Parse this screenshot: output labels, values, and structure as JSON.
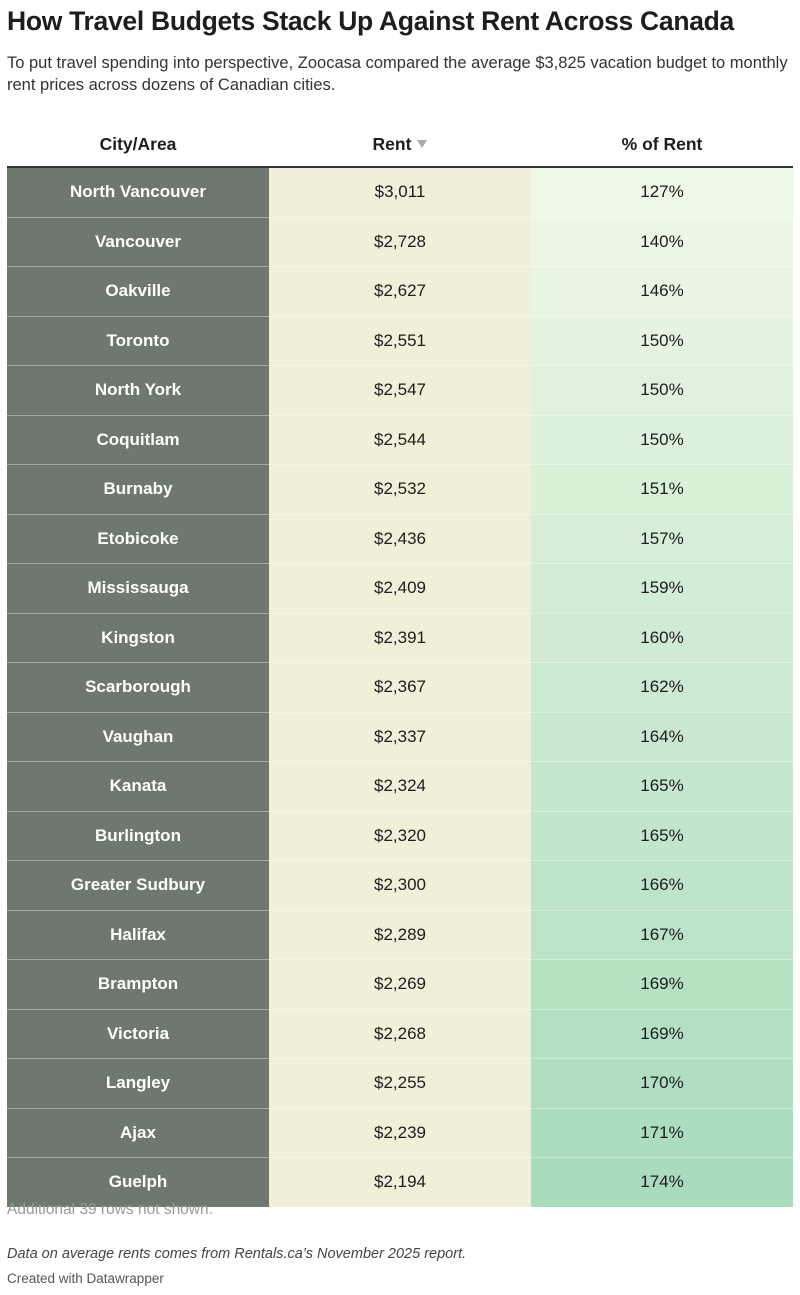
{
  "header": {
    "title": "How Travel Budgets Stack Up Against Rent Across Canada",
    "subtitle": "To put travel spending into perspective, Zoocasa compared the average $3,825 vacation budget to monthly rent prices across dozens of Canadian cities."
  },
  "table": {
    "columns": [
      "City/Area",
      "Rent",
      "% of Rent"
    ],
    "rows": [
      [
        "North Vancouver",
        "$3,011",
        "127%"
      ],
      [
        "Vancouver",
        "$2,728",
        "140%"
      ],
      [
        "Oakville",
        "$2,627",
        "146%"
      ],
      [
        "Toronto",
        "$2,551",
        "150%"
      ],
      [
        "North York",
        "$2,547",
        "150%"
      ],
      [
        "Coquitlam",
        "$2,544",
        "150%"
      ],
      [
        "Burnaby",
        "$2,532",
        "151%"
      ],
      [
        "Etobicoke",
        "$2,436",
        "157%"
      ],
      [
        "Mississauga",
        "$2,409",
        "159%"
      ],
      [
        "Kingston",
        "$2,391",
        "160%"
      ],
      [
        "Scarborough",
        "$2,367",
        "162%"
      ],
      [
        "Vaughan",
        "$2,337",
        "164%"
      ],
      [
        "Kanata",
        "$2,324",
        "165%"
      ],
      [
        "Burlington",
        "$2,320",
        "165%"
      ],
      [
        "Greater Sudbury",
        "$2,300",
        "166%"
      ],
      [
        "Halifax",
        "$2,289",
        "167%"
      ],
      [
        "Brampton",
        "$2,269",
        "169%"
      ],
      [
        "Victoria",
        "$2,268",
        "169%"
      ],
      [
        "Langley",
        "$2,255",
        "170%"
      ],
      [
        "Ajax",
        "$2,239",
        "171%"
      ],
      [
        "Guelph",
        "$2,194",
        "174%"
      ]
    ],
    "more_rows": "Additional 39 rows not shown."
  },
  "footer": {
    "note": "Data on average rents comes from Rentals.ca’s November 2025 report.",
    "credit": "Created with Datawrapper"
  }
}
